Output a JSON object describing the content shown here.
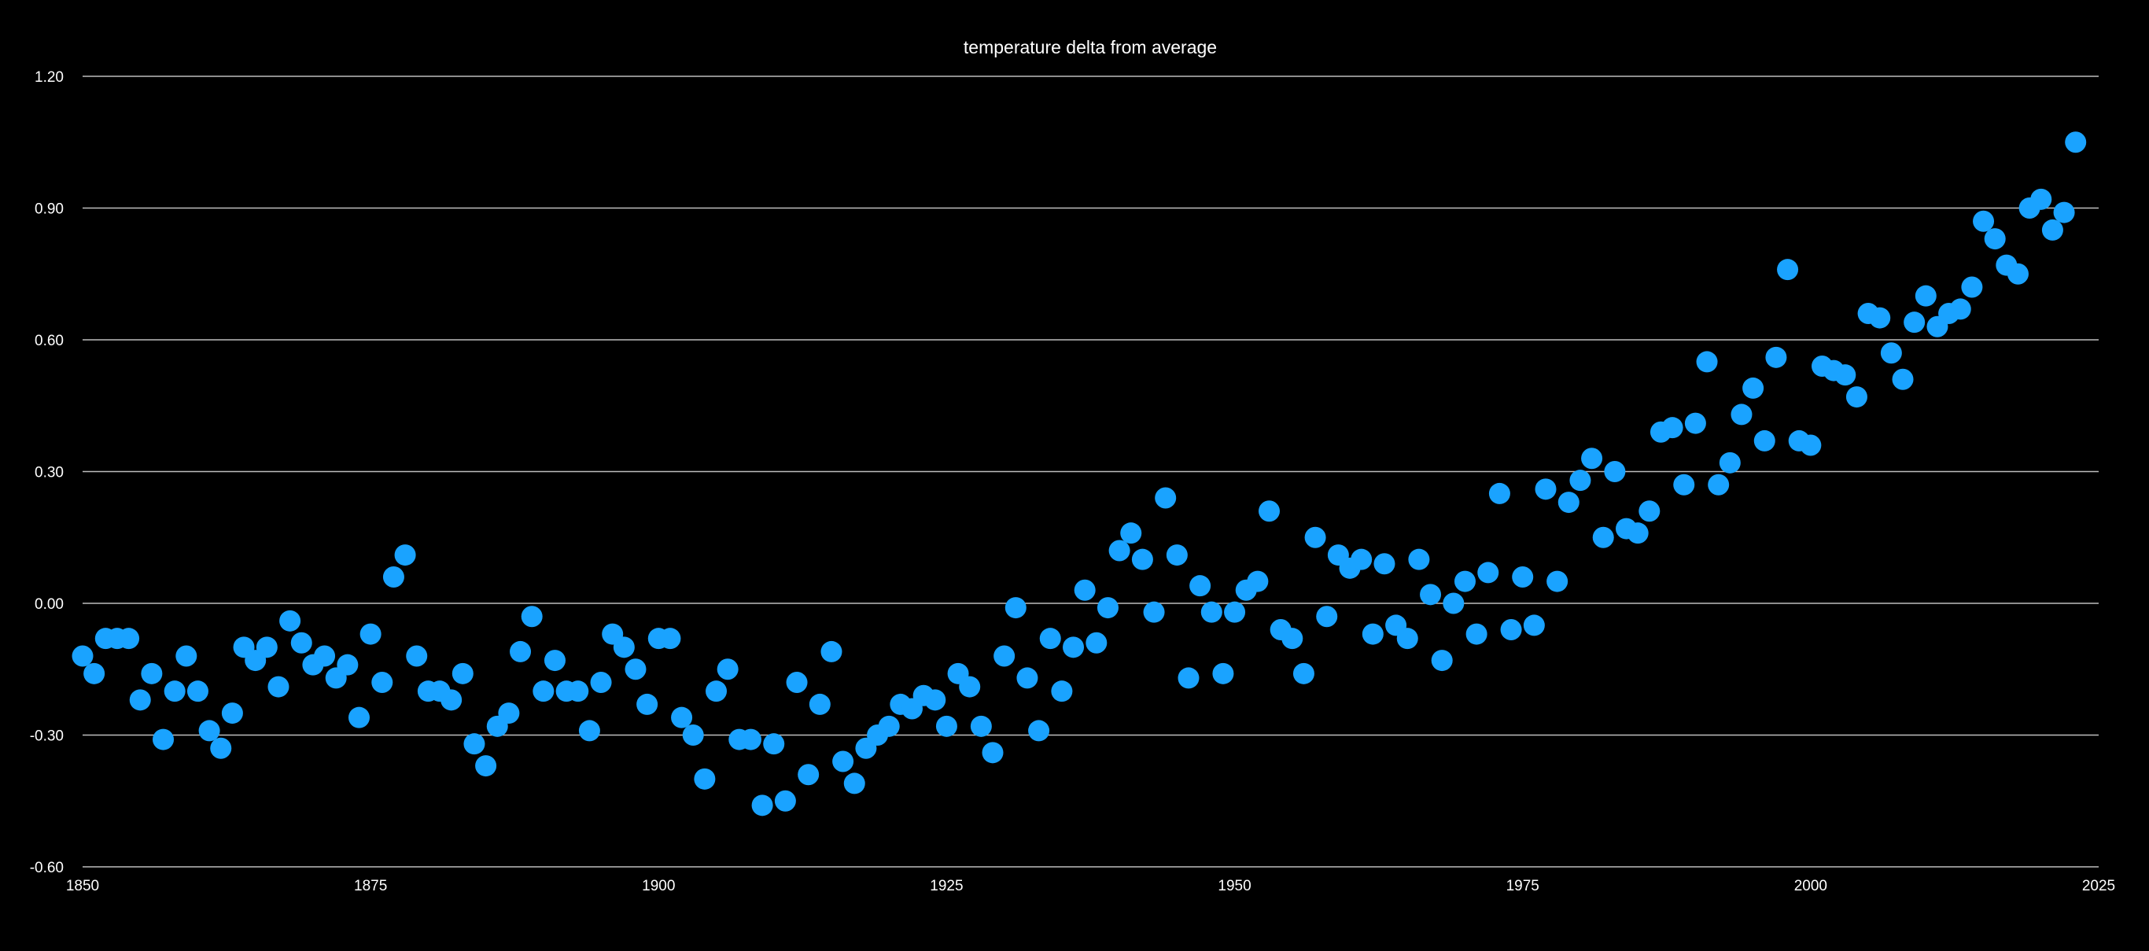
{
  "chart_data": {
    "type": "scatter",
    "title": "temperature delta from average",
    "xlabel": "",
    "ylabel": "",
    "xlim": [
      1850,
      2025
    ],
    "ylim": [
      -0.6,
      1.2
    ],
    "x_ticks": [
      "1850",
      "1875",
      "1900",
      "1925",
      "1950",
      "1975",
      "2000",
      "2025"
    ],
    "y_ticks": [
      "1.20",
      "0.90",
      "0.60",
      "0.30",
      "0.00",
      "-0.30",
      "-0.60"
    ],
    "grid": true,
    "legend": "none",
    "point_color": "#1aa3ff",
    "background": "#000000",
    "series": [
      {
        "x": [
          1850,
          1851,
          1852,
          1853,
          1854,
          1855,
          1856,
          1857,
          1858,
          1859,
          1860,
          1861,
          1862,
          1863,
          1864,
          1865,
          1866,
          1867,
          1868,
          1869,
          1870,
          1871,
          1872,
          1873,
          1874,
          1875,
          1876,
          1877,
          1878,
          1879,
          1880,
          1881,
          1882,
          1883,
          1884,
          1885,
          1886,
          1887,
          1888,
          1889,
          1890,
          1891,
          1892,
          1893,
          1894,
          1895,
          1896,
          1897,
          1898,
          1899,
          1900,
          1901,
          1902,
          1903,
          1904,
          1905,
          1906,
          1907,
          1908,
          1909,
          1910,
          1911,
          1912,
          1913,
          1914,
          1915,
          1916,
          1917,
          1918,
          1919,
          1920,
          1921,
          1922,
          1923,
          1924,
          1925,
          1926,
          1927,
          1928,
          1929,
          1930,
          1931,
          1932,
          1933,
          1934,
          1935,
          1936,
          1937,
          1938,
          1939,
          1940,
          1941,
          1942,
          1943,
          1944,
          1945,
          1946,
          1947,
          1948,
          1949,
          1950,
          1951,
          1952,
          1953,
          1954,
          1955,
          1956,
          1957,
          1958,
          1959,
          1960,
          1961,
          1962,
          1963,
          1964,
          1965,
          1966,
          1967,
          1968,
          1969,
          1970,
          1971,
          1972,
          1973,
          1974,
          1975,
          1976,
          1977,
          1978,
          1979,
          1980,
          1981,
          1982,
          1983,
          1984,
          1985,
          1986,
          1987,
          1988,
          1989,
          1990,
          1991,
          1992,
          1993,
          1994,
          1995,
          1996,
          1997,
          1998,
          1999,
          2000,
          2001,
          2002,
          2003,
          2004,
          2005,
          2006,
          2007,
          2008,
          2009,
          2010,
          2011,
          2012,
          2013,
          2014,
          2015,
          2016,
          2017,
          2018,
          2019,
          2020,
          2021,
          2022,
          2023
        ],
        "y": [
          -0.12,
          -0.16,
          -0.08,
          -0.08,
          -0.08,
          -0.22,
          -0.16,
          -0.31,
          -0.2,
          -0.12,
          -0.2,
          -0.29,
          -0.33,
          -0.25,
          -0.1,
          -0.13,
          -0.1,
          -0.19,
          -0.04,
          -0.09,
          -0.14,
          -0.12,
          -0.17,
          -0.14,
          -0.26,
          -0.07,
          -0.18,
          0.06,
          0.11,
          -0.12,
          -0.2,
          -0.2,
          -0.22,
          -0.16,
          -0.32,
          -0.37,
          -0.28,
          -0.25,
          -0.11,
          -0.03,
          -0.2,
          -0.13,
          -0.2,
          -0.2,
          -0.29,
          -0.18,
          -0.07,
          -0.1,
          -0.15,
          -0.23,
          -0.08,
          -0.08,
          -0.26,
          -0.3,
          -0.4,
          -0.2,
          -0.15,
          -0.31,
          -0.31,
          -0.46,
          -0.32,
          -0.45,
          -0.18,
          -0.39,
          -0.23,
          -0.11,
          -0.36,
          -0.41,
          -0.33,
          -0.3,
          -0.28,
          -0.23,
          -0.24,
          -0.21,
          -0.22,
          -0.28,
          -0.16,
          -0.19,
          -0.28,
          -0.34,
          -0.12,
          -0.01,
          -0.17,
          -0.29,
          -0.08,
          -0.2,
          -0.1,
          0.03,
          -0.09,
          -0.01,
          0.12,
          0.16,
          0.1,
          -0.02,
          0.24,
          0.11,
          -0.17,
          0.04,
          -0.02,
          -0.16,
          -0.02,
          0.03,
          0.05,
          0.21,
          -0.06,
          -0.08,
          -0.16,
          0.15,
          -0.03,
          0.11,
          0.08,
          0.1,
          -0.07,
          0.09,
          -0.05,
          -0.08,
          0.1,
          0.02,
          -0.13,
          0.0,
          0.05,
          -0.07,
          0.07,
          0.25,
          -0.06,
          0.06,
          -0.05,
          0.26,
          0.05,
          0.23,
          0.28,
          0.33,
          0.15,
          0.3,
          0.17,
          0.16,
          0.21,
          0.39,
          0.4,
          0.27,
          0.41,
          0.55,
          0.27,
          0.32,
          0.43,
          0.49,
          0.37,
          0.56,
          0.76,
          0.37,
          0.36,
          0.54,
          0.53,
          0.52,
          0.47,
          0.66,
          0.65,
          0.57,
          0.51,
          0.64,
          0.7,
          0.63,
          0.66,
          0.67,
          0.72,
          0.87,
          0.83,
          0.77,
          0.75,
          0.9,
          0.92,
          0.85,
          0.89,
          1.05
        ]
      }
    ]
  }
}
